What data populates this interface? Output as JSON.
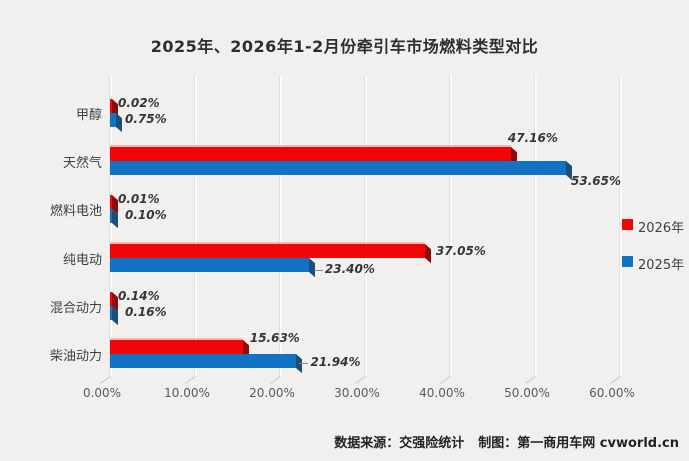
{
  "title": "2025年、2026年1-2月份牵引车市场燃料类型对比",
  "chart_data": {
    "type": "bar",
    "orientation": "horizontal",
    "title": "2025年、2026年1-2月份牵引车市场燃料类型对比",
    "categories": [
      "甲醇",
      "天然气",
      "燃料电池",
      "纯电动",
      "混合动力",
      "柴油动力"
    ],
    "series": [
      {
        "name": "2026年",
        "key": "2026",
        "color": "#f20505",
        "color_dark": "#8e0b0b",
        "values": [
          0.02,
          47.16,
          0.01,
          37.05,
          0.14,
          15.63
        ]
      },
      {
        "name": "2025年",
        "key": "2025",
        "color": "#1173c2",
        "color_dark": "#1b4e79",
        "values": [
          0.75,
          53.65,
          0.1,
          23.4,
          0.16,
          21.94
        ]
      }
    ],
    "value_labels": [
      [
        "0.02%",
        "0.75%"
      ],
      [
        "47.16%",
        "53.65%"
      ],
      [
        "0.01%",
        "0.10%"
      ],
      [
        "37.05%",
        "23.40%"
      ],
      [
        "0.14%",
        "0.16%"
      ],
      [
        "15.63%",
        "21.94%"
      ]
    ],
    "x_ticks": [
      "0.00%",
      "10.00%",
      "20.00%",
      "30.00%",
      "40.00%",
      "50.00%",
      "60.00%"
    ],
    "xlim": [
      0,
      60
    ],
    "grid": true,
    "legend_position": "right"
  },
  "footer": {
    "source": "数据来源：交强险统计",
    "credit": "制图：第一商用车网 cvworld.cn"
  }
}
